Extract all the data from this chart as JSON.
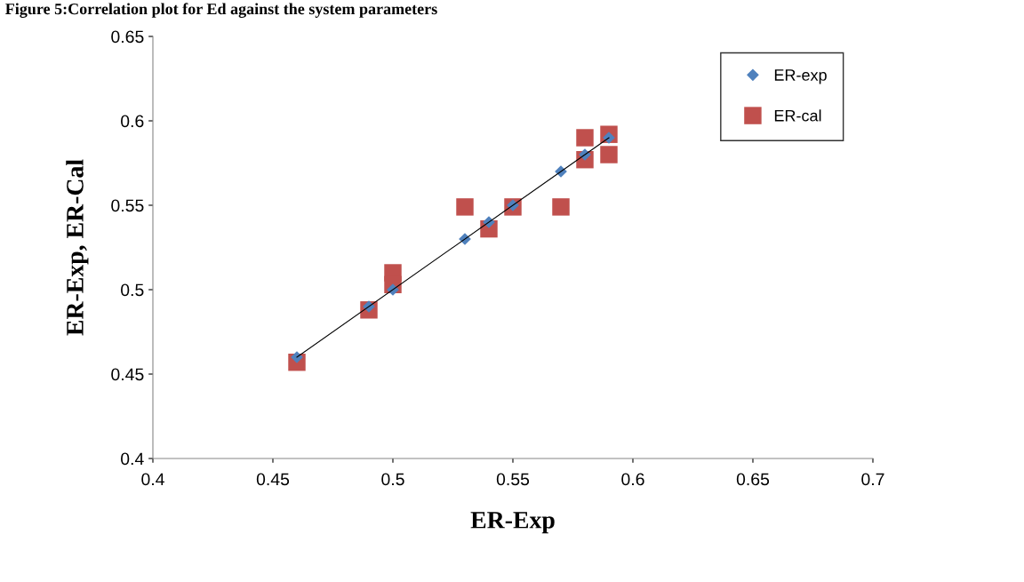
{
  "chart_data": {
    "type": "scatter",
    "title": "Figure 5:Correlation plot for Ed against the system parameters",
    "xlabel": "ER-Exp",
    "ylabel": "ER-Exp, ER-Cal",
    "series": [
      {
        "name": "ER-exp",
        "color": "#4f81bd",
        "marker": "diamond",
        "x": [
          0.46,
          0.49,
          0.5,
          0.53,
          0.54,
          0.55,
          0.57,
          0.58,
          0.59
        ],
        "values": [
          0.46,
          0.49,
          0.5,
          0.53,
          0.54,
          0.55,
          0.57,
          0.58,
          0.59
        ]
      },
      {
        "name": "ER-cal",
        "color": "#c0504d",
        "marker": "square",
        "x": [
          0.46,
          0.49,
          0.5,
          0.5,
          0.53,
          0.54,
          0.55,
          0.57,
          0.58,
          0.58,
          0.59,
          0.59
        ],
        "values": [
          0.457,
          0.488,
          0.51,
          0.503,
          0.549,
          0.536,
          0.549,
          0.549,
          0.59,
          0.577,
          0.592,
          0.58
        ]
      },
      {
        "type": "line",
        "color": "#000000",
        "marker": "none",
        "line_style": "solid",
        "x": [
          0.46,
          0.59
        ],
        "values": [
          0.46,
          0.59
        ]
      }
    ],
    "xlim": [
      0.4,
      0.7
    ],
    "xticks": [
      0.4,
      0.45,
      0.5,
      0.55,
      0.6,
      0.65,
      0.7
    ],
    "ylim": [
      0.4,
      0.65
    ],
    "yticks": [
      0.4,
      0.45,
      0.5,
      0.55,
      0.6,
      0.65
    ],
    "grid": false,
    "legend": "top right"
  }
}
